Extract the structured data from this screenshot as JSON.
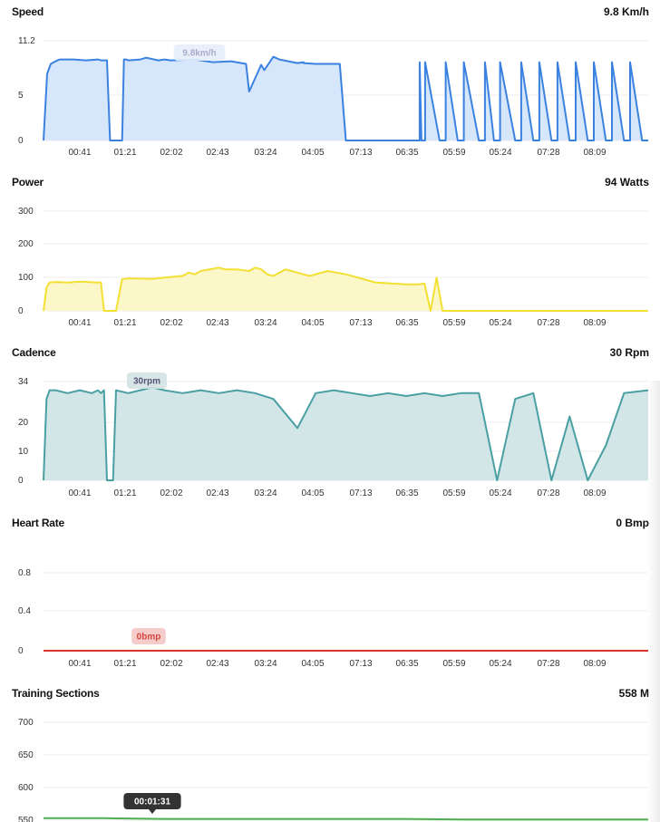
{
  "x_ticks": [
    "00:41",
    "01:21",
    "02:02",
    "02:43",
    "03:24",
    "04:05",
    "07:13",
    "06:35",
    "05:59",
    "05:24",
    "07:28",
    "08:09"
  ],
  "chart_data": [
    {
      "type": "area",
      "title": "Speed",
      "current_value": "9.8 Km/h",
      "y_ticks": [
        "11.2",
        "5",
        "0"
      ],
      "ylim": [
        0,
        11.2
      ],
      "color": "#3b82e0",
      "fill": "#d6e6fb",
      "tooltip": "9.8km/h",
      "x": [
        0,
        0.006,
        0.012,
        0.02,
        0.027,
        0.035,
        0.05,
        0.07,
        0.09,
        0.095,
        0.105,
        0.11,
        0.115,
        0.117,
        0.125,
        0.13,
        0.133,
        0.137,
        0.14,
        0.16,
        0.17,
        0.19,
        0.2,
        0.21,
        0.25,
        0.28,
        0.31,
        0.335,
        0.34,
        0.36,
        0.365,
        0.38,
        0.39,
        0.42,
        0.42,
        0.43,
        0.43,
        0.45,
        0.45,
        0.465,
        0.47,
        0.49,
        0.5,
        0.55,
        0.56,
        0.58,
        0.6,
        0.61,
        0.622,
        0.622,
        0.625,
        0.628,
        0.631,
        0.631,
        0.655,
        0.66,
        0.665,
        0.665,
        0.685,
        0.69,
        0.695,
        0.695,
        0.72,
        0.725,
        0.73,
        0.73,
        0.745,
        0.75,
        0.755,
        0.755,
        0.78,
        0.785,
        0.79,
        0.79,
        0.81,
        0.815,
        0.82,
        0.82,
        0.84,
        0.845,
        0.85,
        0.85,
        0.87,
        0.875,
        0.88,
        0.88,
        0.9,
        0.905,
        0.91,
        0.91,
        0.93,
        0.935,
        0.94,
        0.94,
        0.96,
        0.965,
        0.97,
        0.97,
        0.99,
        0.995,
        1
      ],
      "y": [
        0,
        7.5,
        8.6,
        8.9,
        9.1,
        9.1,
        9.1,
        9.0,
        9.1,
        9.0,
        9.0,
        0,
        0,
        0,
        0,
        0,
        9.1,
        9.1,
        9.0,
        9.1,
        9.3,
        9.0,
        9.1,
        9.0,
        9.1,
        8.8,
        8.9,
        8.6,
        5.5,
        8.5,
        7.9,
        9.4,
        9.1,
        8.7,
        8.7,
        8.8,
        8.7,
        8.6,
        8.6,
        8.6,
        8.6,
        8.6,
        0,
        0,
        0,
        0,
        0,
        0,
        0,
        8.8,
        0,
        0,
        0,
        8.8,
        0,
        0,
        0,
        8.8,
        0,
        0,
        0,
        8.8,
        0,
        0,
        0,
        8.8,
        0,
        0,
        0,
        8.8,
        0,
        0,
        0,
        8.8,
        0,
        0,
        0,
        8.8,
        0,
        0,
        0,
        8.8,
        0,
        0,
        0,
        8.8,
        0,
        0,
        0,
        8.8,
        0,
        0,
        0,
        8.8,
        0,
        0,
        0,
        8.8,
        0,
        0,
        0
      ]
    },
    {
      "type": "area",
      "title": "Power",
      "current_value": "94 Watts",
      "y_ticks": [
        "300",
        "200",
        "100",
        "0"
      ],
      "ylim": [
        0,
        300
      ],
      "color": "#f2e033",
      "fill": "#fbf7c9",
      "x": [
        0,
        0.005,
        0.01,
        0.02,
        0.04,
        0.06,
        0.09,
        0.095,
        0.1,
        0.105,
        0.12,
        0.13,
        0.14,
        0.18,
        0.2,
        0.23,
        0.24,
        0.25,
        0.26,
        0.29,
        0.3,
        0.32,
        0.34,
        0.35,
        0.36,
        0.37,
        0.38,
        0.4,
        0.4,
        0.41,
        0.43,
        0.44,
        0.45,
        0.47,
        0.5,
        0.54,
        0.55,
        0.55,
        0.6,
        0.61,
        0.62,
        0.63,
        0.64,
        0.65,
        0.66,
        0.67,
        0.68,
        0.69,
        0.7,
        0.71,
        0.72,
        0.73,
        0.74,
        0.75,
        0.76,
        0.77,
        0.78,
        0.79,
        0.8,
        0.85,
        0.9,
        0.95,
        1
      ],
      "y": [
        0,
        70,
        85,
        87,
        85,
        88,
        85,
        85,
        0,
        0,
        0,
        95,
        98,
        96,
        100,
        105,
        115,
        110,
        120,
        130,
        125,
        125,
        120,
        130,
        125,
        110,
        105,
        125,
        125,
        120,
        110,
        105,
        110,
        120,
        110,
        90,
        85,
        85,
        80,
        80,
        80,
        82,
        0,
        100,
        0,
        0,
        0,
        0,
        0,
        0,
        0,
        0,
        0,
        0,
        0,
        0,
        0,
        0,
        0,
        0,
        0,
        0,
        0
      ]
    },
    {
      "type": "area",
      "title": "Cadence",
      "current_value": "30 Rpm",
      "y_ticks": [
        "34",
        "20",
        "10",
        "0"
      ],
      "ylim": [
        0,
        34
      ],
      "color": "#4a9fa3",
      "fill": "#d3e6e7",
      "tooltip": "30rpm",
      "x": [
        0,
        0.005,
        0.01,
        0.02,
        0.04,
        0.06,
        0.08,
        0.09,
        0.095,
        0.1,
        0.105,
        0.11,
        0.115,
        0.12,
        0.14,
        0.16,
        0.18,
        0.2,
        0.23,
        0.26,
        0.29,
        0.32,
        0.35,
        0.38,
        0.42,
        0.45,
        0.48,
        0.51,
        0.54,
        0.57,
        0.6,
        0.63,
        0.66,
        0.69,
        0.72,
        0.75,
        0.78,
        0.81,
        0.84,
        0.87,
        0.9,
        0.93,
        0.96,
        1
      ],
      "y": [
        0,
        28,
        31,
        31,
        30,
        31,
        30,
        31,
        30,
        31,
        0,
        0,
        0,
        31,
        30,
        31,
        32,
        31,
        30,
        31,
        30,
        31,
        30,
        28,
        18,
        30,
        31,
        30,
        29,
        30,
        29,
        30,
        29,
        30,
        30,
        0,
        28,
        30,
        0,
        22,
        0,
        12,
        30,
        31
      ]
    },
    {
      "type": "line",
      "title": "Heart Rate",
      "current_value": "0 Bmp",
      "y_ticks": [
        "0.8",
        "0.4",
        "0"
      ],
      "ylim": [
        0,
        0.8
      ],
      "color": "#e0322d",
      "tooltip": "0bmp",
      "x": [
        0,
        1
      ],
      "y": [
        0,
        0
      ]
    },
    {
      "type": "line",
      "title": "Training Sections",
      "current_value": "558 M",
      "y_ticks": [
        "700",
        "650",
        "600",
        "550"
      ],
      "ylim": [
        550,
        700
      ],
      "color": "#4caf50",
      "tooltip": "00:01:31",
      "x": [
        0,
        0.1,
        0.2,
        0.3,
        0.4,
        0.5,
        0.6,
        0.7,
        0.8,
        0.9,
        1
      ],
      "y": [
        553,
        553,
        552,
        552,
        552,
        552,
        552,
        551,
        551,
        551,
        551
      ]
    }
  ]
}
